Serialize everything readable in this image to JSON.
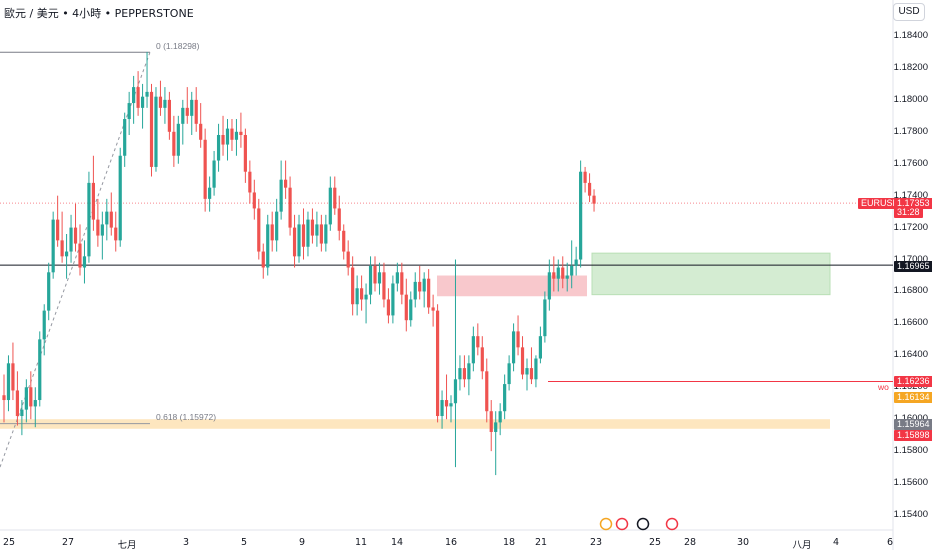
{
  "header": {
    "title": "歐元 / 美元 • 4小時 • PEPPERSTONE"
  },
  "currency": "USD",
  "colors": {
    "up": "#26a69a",
    "down": "#ef5350",
    "supply": "#f8c8cc",
    "demand": "#d4ecd2",
    "zone": "#fde6bf"
  },
  "chart_data": {
    "type": "candlestick",
    "symbol": "EURUSD",
    "y_ticks": [
      "1.18400",
      "1.18200",
      "1.18000",
      "1.17800",
      "1.17600",
      "1.17400",
      "1.17200",
      "1.17000",
      "1.16800",
      "1.16600",
      "1.16400",
      "1.16200",
      "1.16000",
      "1.15800",
      "1.15600",
      "1.15400"
    ],
    "x_ticks": [
      "25",
      "27",
      "七月",
      "3",
      "5",
      "9",
      "11",
      "14",
      "16",
      "18",
      "21",
      "23",
      "25",
      "28",
      "30",
      "八月",
      "4",
      "6"
    ],
    "price_tags": {
      "last_symbol": "EURUSD",
      "last_price": "1.17353",
      "countdown": "31:28",
      "hline_price": "1.16965",
      "wo_label": "wo",
      "wo_price": "1.16236",
      "orange_price": "1.16134",
      "gray_price": "1.15964",
      "red_price": "1.15898"
    },
    "fib": {
      "top_label": "0 (1.18298)",
      "low_label": "0.618 (1.15972)"
    },
    "candles": [
      [
        1.1615,
        1.1628,
        1.1598,
        1.1612
      ],
      [
        1.1612,
        1.164,
        1.1605,
        1.1635
      ],
      [
        1.1635,
        1.1648,
        1.1612,
        1.1618
      ],
      [
        1.1618,
        1.163,
        1.1596,
        1.1602
      ],
      [
        1.1602,
        1.1612,
        1.159,
        1.1606
      ],
      [
        1.1606,
        1.1625,
        1.1598,
        1.162
      ],
      [
        1.162,
        1.163,
        1.16,
        1.1608
      ],
      [
        1.1608,
        1.162,
        1.1595,
        1.1612
      ],
      [
        1.1612,
        1.1655,
        1.1608,
        1.165
      ],
      [
        1.165,
        1.1672,
        1.164,
        1.1668
      ],
      [
        1.1668,
        1.1698,
        1.1662,
        1.1692
      ],
      [
        1.1692,
        1.173,
        1.1688,
        1.1725
      ],
      [
        1.1725,
        1.174,
        1.1708,
        1.1712
      ],
      [
        1.1712,
        1.173,
        1.1698,
        1.1702
      ],
      [
        1.1702,
        1.1716,
        1.1688,
        1.1705
      ],
      [
        1.1705,
        1.1728,
        1.1698,
        1.172
      ],
      [
        1.172,
        1.1735,
        1.1705,
        1.171
      ],
      [
        1.171,
        1.1722,
        1.169,
        1.1695
      ],
      [
        1.1695,
        1.1712,
        1.1685,
        1.1702
      ],
      [
        1.1702,
        1.1755,
        1.1698,
        1.1748
      ],
      [
        1.1748,
        1.1765,
        1.1718,
        1.1725
      ],
      [
        1.1725,
        1.1738,
        1.1708,
        1.1715
      ],
      [
        1.1715,
        1.173,
        1.17,
        1.1722
      ],
      [
        1.1722,
        1.1738,
        1.1712,
        1.173
      ],
      [
        1.173,
        1.1742,
        1.1715,
        1.172
      ],
      [
        1.172,
        1.173,
        1.1705,
        1.1712
      ],
      [
        1.1712,
        1.177,
        1.1708,
        1.1765
      ],
      [
        1.1765,
        1.1792,
        1.1758,
        1.1788
      ],
      [
        1.1788,
        1.1805,
        1.1778,
        1.1798
      ],
      [
        1.1798,
        1.1815,
        1.1785,
        1.1808
      ],
      [
        1.1808,
        1.1818,
        1.179,
        1.1795
      ],
      [
        1.1795,
        1.181,
        1.1782,
        1.1802
      ],
      [
        1.1802,
        1.183,
        1.1795,
        1.1805
      ],
      [
        1.1805,
        1.181,
        1.1752,
        1.1758
      ],
      [
        1.1758,
        1.1808,
        1.1755,
        1.1802
      ],
      [
        1.1802,
        1.1812,
        1.179,
        1.1795
      ],
      [
        1.1795,
        1.1808,
        1.1785,
        1.18
      ],
      [
        1.18,
        1.1805,
        1.1775,
        1.178
      ],
      [
        1.178,
        1.179,
        1.1758,
        1.1765
      ],
      [
        1.1765,
        1.179,
        1.176,
        1.1785
      ],
      [
        1.1785,
        1.18,
        1.1772,
        1.1795
      ],
      [
        1.1795,
        1.1808,
        1.1785,
        1.179
      ],
      [
        1.179,
        1.1805,
        1.1778,
        1.18
      ],
      [
        1.18,
        1.1808,
        1.178,
        1.1785
      ],
      [
        1.1785,
        1.1798,
        1.177,
        1.1775
      ],
      [
        1.1775,
        1.1782,
        1.173,
        1.1738
      ],
      [
        1.1738,
        1.1752,
        1.173,
        1.1745
      ],
      [
        1.1745,
        1.1768,
        1.174,
        1.1762
      ],
      [
        1.1762,
        1.1785,
        1.1755,
        1.1778
      ],
      [
        1.1778,
        1.179,
        1.1765,
        1.1772
      ],
      [
        1.1772,
        1.1788,
        1.1762,
        1.1782
      ],
      [
        1.1782,
        1.1788,
        1.1768,
        1.1775
      ],
      [
        1.1775,
        1.1788,
        1.1765,
        1.178
      ],
      [
        1.178,
        1.1792,
        1.177,
        1.1778
      ],
      [
        1.1778,
        1.1782,
        1.1748,
        1.1755
      ],
      [
        1.1755,
        1.1762,
        1.1735,
        1.1742
      ],
      [
        1.1742,
        1.175,
        1.1725,
        1.1732
      ],
      [
        1.1732,
        1.1738,
        1.17,
        1.1705
      ],
      [
        1.1705,
        1.171,
        1.1688,
        1.1695
      ],
      [
        1.1695,
        1.1728,
        1.169,
        1.1722
      ],
      [
        1.1722,
        1.173,
        1.1705,
        1.1712
      ],
      [
        1.1712,
        1.1738,
        1.1705,
        1.173
      ],
      [
        1.173,
        1.1762,
        1.1725,
        1.175
      ],
      [
        1.175,
        1.1762,
        1.1738,
        1.1745
      ],
      [
        1.1745,
        1.1752,
        1.1715,
        1.172
      ],
      [
        1.172,
        1.1728,
        1.1695,
        1.1702
      ],
      [
        1.1702,
        1.1728,
        1.1698,
        1.1722
      ],
      [
        1.1722,
        1.1732,
        1.17,
        1.1708
      ],
      [
        1.1708,
        1.173,
        1.1702,
        1.1725
      ],
      [
        1.1725,
        1.1732,
        1.171,
        1.1715
      ],
      [
        1.1715,
        1.173,
        1.1708,
        1.1722
      ],
      [
        1.1722,
        1.1728,
        1.1705,
        1.171
      ],
      [
        1.171,
        1.1728,
        1.1705,
        1.1722
      ],
      [
        1.1722,
        1.1752,
        1.1718,
        1.1745
      ],
      [
        1.1745,
        1.1752,
        1.1728,
        1.1732
      ],
      [
        1.1732,
        1.174,
        1.1712,
        1.1718
      ],
      [
        1.1718,
        1.1722,
        1.17,
        1.1705
      ],
      [
        1.1705,
        1.1712,
        1.169,
        1.1695
      ],
      [
        1.1695,
        1.1702,
        1.1665,
        1.1672
      ],
      [
        1.1672,
        1.169,
        1.1665,
        1.1682
      ],
      [
        1.1682,
        1.169,
        1.1668,
        1.1675
      ],
      [
        1.1675,
        1.1685,
        1.166,
        1.1678
      ],
      [
        1.1678,
        1.1702,
        1.1672,
        1.1696
      ],
      [
        1.1696,
        1.1702,
        1.168,
        1.1685
      ],
      [
        1.1685,
        1.1698,
        1.1678,
        1.1692
      ],
      [
        1.1692,
        1.1698,
        1.167,
        1.1675
      ],
      [
        1.1675,
        1.1682,
        1.166,
        1.1665
      ],
      [
        1.1665,
        1.169,
        1.166,
        1.1685
      ],
      [
        1.1685,
        1.1698,
        1.168,
        1.1692
      ],
      [
        1.1692,
        1.1698,
        1.1672,
        1.1678
      ],
      [
        1.1678,
        1.1688,
        1.1655,
        1.1662
      ],
      [
        1.1662,
        1.168,
        1.1658,
        1.1675
      ],
      [
        1.1675,
        1.1692,
        1.167,
        1.1686
      ],
      [
        1.1686,
        1.1696,
        1.1675,
        1.168
      ],
      [
        1.168,
        1.1692,
        1.167,
        1.1688
      ],
      [
        1.1688,
        1.1694,
        1.1666,
        1.167
      ],
      [
        1.167,
        1.1678,
        1.1658,
        1.1668
      ],
      [
        1.1668,
        1.1672,
        1.1598,
        1.1602
      ],
      [
        1.1602,
        1.1618,
        1.1594,
        1.1612
      ],
      [
        1.1612,
        1.1628,
        1.16,
        1.1608
      ],
      [
        1.1608,
        1.1615,
        1.1598,
        1.161
      ],
      [
        1.161,
        1.17,
        1.157,
        1.1625
      ],
      [
        1.1625,
        1.164,
        1.1618,
        1.1632
      ],
      [
        1.1632,
        1.164,
        1.162,
        1.1625
      ],
      [
        1.1625,
        1.164,
        1.1615,
        1.1635
      ],
      [
        1.1635,
        1.1658,
        1.163,
        1.1652
      ],
      [
        1.1652,
        1.166,
        1.164,
        1.1645
      ],
      [
        1.1645,
        1.1652,
        1.1625,
        1.163
      ],
      [
        1.163,
        1.1638,
        1.1598,
        1.1605
      ],
      [
        1.1605,
        1.1612,
        1.158,
        1.1592
      ],
      [
        1.1592,
        1.1605,
        1.1565,
        1.1598
      ],
      [
        1.1598,
        1.161,
        1.159,
        1.1605
      ],
      [
        1.1605,
        1.1628,
        1.16,
        1.1622
      ],
      [
        1.1622,
        1.164,
        1.1618,
        1.1635
      ],
      [
        1.1635,
        1.166,
        1.163,
        1.1655
      ],
      [
        1.1655,
        1.1665,
        1.164,
        1.1645
      ],
      [
        1.1645,
        1.1652,
        1.1625,
        1.1628
      ],
      [
        1.1628,
        1.1638,
        1.1618,
        1.1632
      ],
      [
        1.1632,
        1.1645,
        1.1622,
        1.1625
      ],
      [
        1.1625,
        1.164,
        1.162,
        1.1638
      ],
      [
        1.1638,
        1.1658,
        1.1635,
        1.1652
      ],
      [
        1.1652,
        1.168,
        1.1648,
        1.1675
      ],
      [
        1.1675,
        1.17,
        1.1668,
        1.1692
      ],
      [
        1.1692,
        1.1702,
        1.168,
        1.1688
      ],
      [
        1.1688,
        1.17,
        1.168,
        1.1695
      ],
      [
        1.1695,
        1.1702,
        1.1682,
        1.1688
      ],
      [
        1.1688,
        1.1698,
        1.168,
        1.169
      ],
      [
        1.169,
        1.1712,
        1.1682,
        1.1696
      ],
      [
        1.1696,
        1.1708,
        1.169,
        1.17
      ],
      [
        1.17,
        1.1762,
        1.1695,
        1.1755
      ],
      [
        1.1755,
        1.1758,
        1.1742,
        1.1748
      ],
      [
        1.1748,
        1.1754,
        1.1736,
        1.174
      ],
      [
        1.174,
        1.1744,
        1.173,
        1.1735
      ]
    ]
  }
}
